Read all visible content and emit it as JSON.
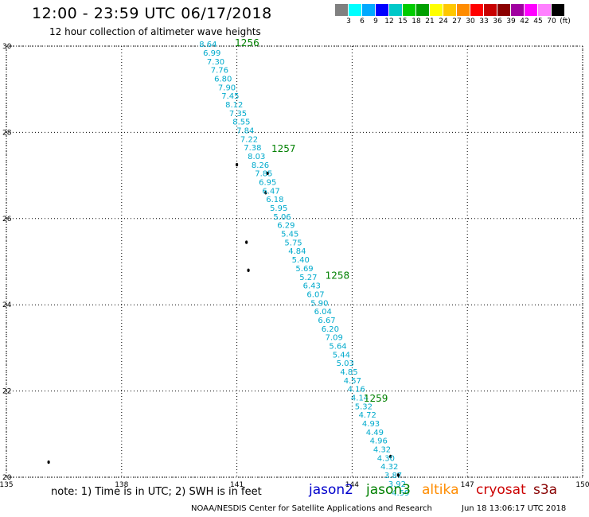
{
  "title": "12:00 - 23:59 UTC 06/17/2018",
  "subtitle": "12 hour collection of altimeter wave heights",
  "colorbar": {
    "colors": [
      "#808080",
      "#00ffff",
      "#00aaff",
      "#0000ff",
      "#00c8c8",
      "#00cc00",
      "#00a000",
      "#ffff00",
      "#ffc800",
      "#ff8c00",
      "#ff0000",
      "#c80000",
      "#8b0000",
      "#a000a0",
      "#ff00ff",
      "#ff80ff",
      "#000000"
    ],
    "labels": [
      "3",
      "6",
      "9",
      "12",
      "15",
      "18",
      "21",
      "24",
      "27",
      "30",
      "33",
      "36",
      "39",
      "42",
      "45",
      "70",
      "(ft)"
    ]
  },
  "axes": {
    "x_ticks": [
      "135",
      "138",
      "141",
      "144",
      "147",
      "150"
    ],
    "y_ticks": [
      "30",
      "28",
      "26",
      "24",
      "22",
      "20"
    ]
  },
  "chart_data": {
    "type": "scatter",
    "xlim": [
      135,
      150
    ],
    "ylim": [
      20,
      30
    ],
    "grid": true,
    "track_color": "#00aacc",
    "points": [
      {
        "lon": 140.25,
        "lat": 29.98,
        "v": "8.64"
      },
      {
        "lon": 140.35,
        "lat": 29.78,
        "v": "6.99"
      },
      {
        "lon": 140.45,
        "lat": 29.58,
        "v": "7.30"
      },
      {
        "lon": 140.55,
        "lat": 29.38,
        "v": "7.76"
      },
      {
        "lon": 140.64,
        "lat": 29.18,
        "v": "6.80"
      },
      {
        "lon": 140.74,
        "lat": 28.98,
        "v": "7.90"
      },
      {
        "lon": 140.83,
        "lat": 28.78,
        "v": "7.45"
      },
      {
        "lon": 140.93,
        "lat": 28.58,
        "v": "8.12"
      },
      {
        "lon": 141.03,
        "lat": 28.38,
        "v": "7.35"
      },
      {
        "lon": 141.12,
        "lat": 28.18,
        "v": "8.55"
      },
      {
        "lon": 141.22,
        "lat": 27.98,
        "v": "7.84"
      },
      {
        "lon": 141.32,
        "lat": 27.78,
        "v": "7.22"
      },
      {
        "lon": 141.41,
        "lat": 27.58,
        "v": "7.38"
      },
      {
        "lon": 141.51,
        "lat": 27.38,
        "v": "8.03"
      },
      {
        "lon": 141.61,
        "lat": 27.18,
        "v": "8.26"
      },
      {
        "lon": 141.7,
        "lat": 26.98,
        "v": "7.85"
      },
      {
        "lon": 141.8,
        "lat": 26.78,
        "v": "6.95"
      },
      {
        "lon": 141.89,
        "lat": 26.58,
        "v": "6.47"
      },
      {
        "lon": 141.99,
        "lat": 26.38,
        "v": "6.18"
      },
      {
        "lon": 142.09,
        "lat": 26.18,
        "v": "5.95"
      },
      {
        "lon": 142.18,
        "lat": 25.98,
        "v": "5.06"
      },
      {
        "lon": 142.28,
        "lat": 25.78,
        "v": "6.29"
      },
      {
        "lon": 142.38,
        "lat": 25.58,
        "v": "5.45"
      },
      {
        "lon": 142.47,
        "lat": 25.38,
        "v": "5.75"
      },
      {
        "lon": 142.57,
        "lat": 25.18,
        "v": "4.84"
      },
      {
        "lon": 142.66,
        "lat": 24.98,
        "v": "5.40"
      },
      {
        "lon": 142.76,
        "lat": 24.78,
        "v": "5.69"
      },
      {
        "lon": 142.86,
        "lat": 24.58,
        "v": "5.27"
      },
      {
        "lon": 142.95,
        "lat": 24.38,
        "v": "6.43"
      },
      {
        "lon": 143.05,
        "lat": 24.18,
        "v": "6.07"
      },
      {
        "lon": 143.15,
        "lat": 23.98,
        "v": "5.90"
      },
      {
        "lon": 143.24,
        "lat": 23.78,
        "v": "6.04"
      },
      {
        "lon": 143.34,
        "lat": 23.58,
        "v": "6.67"
      },
      {
        "lon": 143.43,
        "lat": 23.38,
        "v": "6.20"
      },
      {
        "lon": 143.53,
        "lat": 23.18,
        "v": "7.09"
      },
      {
        "lon": 143.63,
        "lat": 22.98,
        "v": "5.64"
      },
      {
        "lon": 143.72,
        "lat": 22.78,
        "v": "5.44"
      },
      {
        "lon": 143.82,
        "lat": 22.58,
        "v": "5.03"
      },
      {
        "lon": 143.92,
        "lat": 22.38,
        "v": "4.85"
      },
      {
        "lon": 144.01,
        "lat": 22.18,
        "v": "4.57"
      },
      {
        "lon": 144.11,
        "lat": 21.98,
        "v": "4.16"
      },
      {
        "lon": 144.2,
        "lat": 21.78,
        "v": "4.14"
      },
      {
        "lon": 144.3,
        "lat": 21.58,
        "v": "5.32"
      },
      {
        "lon": 144.4,
        "lat": 21.38,
        "v": "4.72"
      },
      {
        "lon": 144.49,
        "lat": 21.18,
        "v": "4.93"
      },
      {
        "lon": 144.59,
        "lat": 20.98,
        "v": "4.49"
      },
      {
        "lon": 144.69,
        "lat": 20.78,
        "v": "4.96"
      },
      {
        "lon": 144.78,
        "lat": 20.58,
        "v": "4.32"
      },
      {
        "lon": 144.88,
        "lat": 20.38,
        "v": "4.30"
      },
      {
        "lon": 144.97,
        "lat": 20.18,
        "v": "4.32"
      },
      {
        "lon": 145.07,
        "lat": 19.98,
        "v": "3.87"
      },
      {
        "lon": 145.17,
        "lat": 19.78,
        "v": "3.92"
      },
      {
        "lon": 145.26,
        "lat": 19.58,
        "v": "4.59"
      }
    ],
    "time_labels": [
      {
        "lon": 140.95,
        "lat": 30.0,
        "label": "1256"
      },
      {
        "lon": 141.9,
        "lat": 27.55,
        "label": "1257"
      },
      {
        "lon": 143.3,
        "lat": 24.6,
        "label": "1258"
      },
      {
        "lon": 144.3,
        "lat": 21.75,
        "label": "1259"
      }
    ],
    "time_label_color": "#008000",
    "islands": [
      {
        "lon": 136.1,
        "lat": 20.35
      },
      {
        "lon": 141.0,
        "lat": 27.25
      },
      {
        "lon": 141.8,
        "lat": 27.05
      },
      {
        "lon": 141.75,
        "lat": 26.6
      },
      {
        "lon": 141.25,
        "lat": 25.45
      },
      {
        "lon": 141.3,
        "lat": 24.8
      },
      {
        "lon": 145.0,
        "lat": 20.48
      },
      {
        "lon": 145.2,
        "lat": 20.05
      }
    ]
  },
  "note": "note: 1) Time is in UTC; 2) SWH is in feet",
  "legend": [
    {
      "label": "jason2",
      "color": "#0000cc"
    },
    {
      "label": "jason3",
      "color": "#008000"
    },
    {
      "label": "altika",
      "color": "#ff8c00"
    },
    {
      "label": "cryosat",
      "color": "#cc0000"
    },
    {
      "label": "s3a",
      "color": "#880000"
    }
  ],
  "credit": "NOAA/NESDIS Center for Satellite Applications and Research",
  "timestamp": "Jun 18 13:06:17 UTC 2018"
}
